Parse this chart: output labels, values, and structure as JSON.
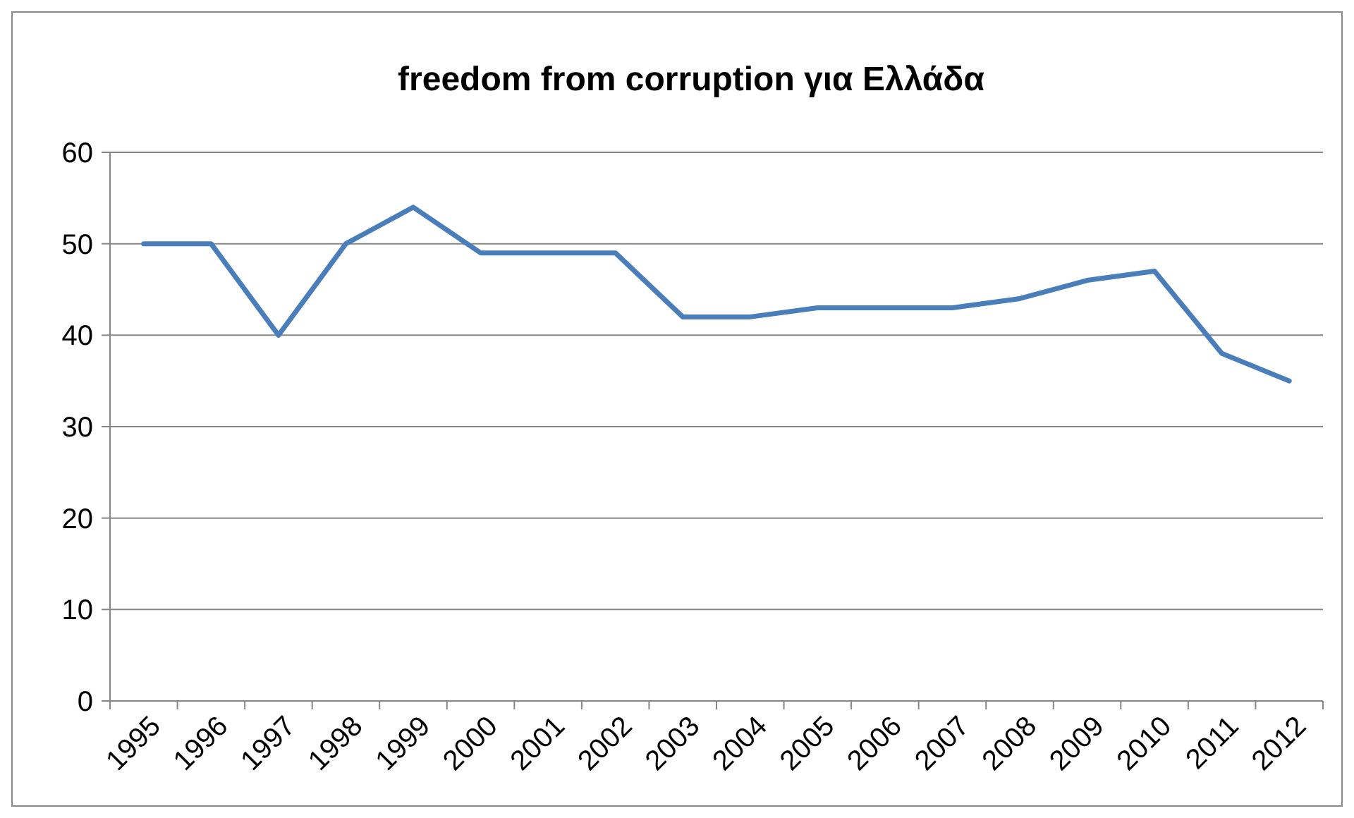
{
  "chart_data": {
    "type": "line",
    "title": "freedom from corruption για Ελλάδα",
    "categories": [
      "1995",
      "1996",
      "1997",
      "1998",
      "1999",
      "2000",
      "2001",
      "2002",
      "2003",
      "2004",
      "2005",
      "2006",
      "2007",
      "2008",
      "2009",
      "2010",
      "2011",
      "2012"
    ],
    "series": [
      {
        "color": "#4a7ebb",
        "values": [
          50,
          50,
          40,
          50,
          54,
          49,
          49,
          49,
          42,
          42,
          43,
          43,
          43,
          44,
          46,
          47,
          38,
          35
        ]
      }
    ],
    "ylim": [
      0,
      60
    ],
    "yticks": [
      0,
      10,
      20,
      30,
      40,
      50,
      60
    ],
    "grid": "y",
    "line_style": "solid"
  }
}
